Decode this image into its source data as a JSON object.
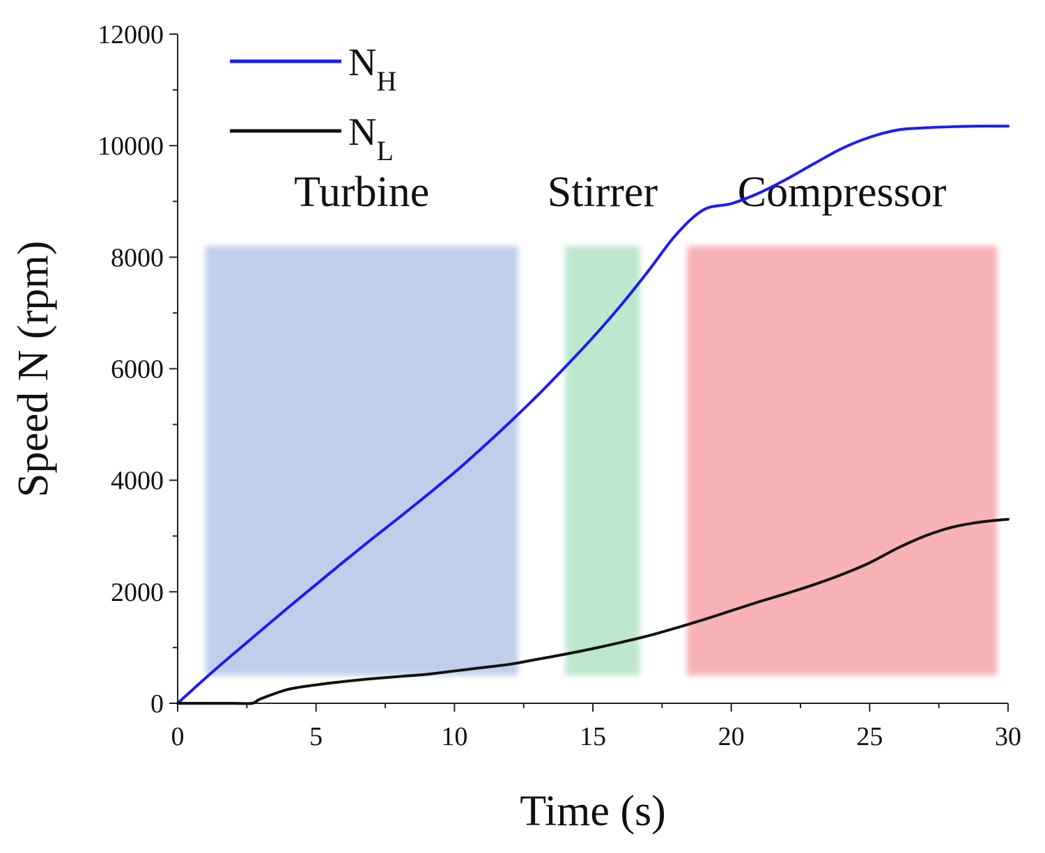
{
  "chart_data": {
    "type": "line",
    "title": "",
    "xlabel": "Time (s)",
    "ylabel": "Speed N (rpm)",
    "xlim": [
      0,
      30
    ],
    "ylim": [
      0,
      12000
    ],
    "x_ticks": [
      "0",
      "5",
      "10",
      "15",
      "20",
      "25",
      "30"
    ],
    "y_ticks": [
      "0",
      "2000",
      "4000",
      "6000",
      "8000",
      "10000",
      "12000"
    ],
    "grid": false,
    "legend_position": "top-left",
    "series": [
      {
        "name": "N",
        "subscript": "H",
        "color": "#1a1aff",
        "points": [
          [
            0,
            0
          ],
          [
            1,
            450
          ],
          [
            2,
            880
          ],
          [
            3,
            1300
          ],
          [
            4,
            1720
          ],
          [
            5,
            2130
          ],
          [
            6,
            2540
          ],
          [
            7,
            2940
          ],
          [
            8,
            3330
          ],
          [
            9,
            3730
          ],
          [
            10,
            4140
          ],
          [
            11,
            4580
          ],
          [
            12,
            5040
          ],
          [
            13,
            5520
          ],
          [
            14,
            6030
          ],
          [
            15,
            6560
          ],
          [
            16,
            7130
          ],
          [
            17,
            7750
          ],
          [
            18,
            8400
          ],
          [
            19,
            8850
          ],
          [
            20,
            8960
          ],
          [
            21,
            9150
          ],
          [
            22,
            9400
          ],
          [
            23,
            9680
          ],
          [
            24,
            9950
          ],
          [
            25,
            10150
          ],
          [
            26,
            10280
          ],
          [
            27,
            10320
          ],
          [
            28,
            10340
          ],
          [
            29,
            10350
          ],
          [
            30,
            10350
          ]
        ]
      },
      {
        "name": "N",
        "subscript": "L",
        "color": "#111111",
        "points": [
          [
            0,
            0
          ],
          [
            1,
            0
          ],
          [
            2,
            0
          ],
          [
            2.7,
            0
          ],
          [
            3,
            80
          ],
          [
            4,
            250
          ],
          [
            5,
            330
          ],
          [
            6,
            390
          ],
          [
            7,
            440
          ],
          [
            8,
            480
          ],
          [
            9,
            520
          ],
          [
            10,
            580
          ],
          [
            11,
            640
          ],
          [
            12,
            700
          ],
          [
            13,
            790
          ],
          [
            14,
            880
          ],
          [
            15,
            980
          ],
          [
            16,
            1090
          ],
          [
            17,
            1210
          ],
          [
            18,
            1350
          ],
          [
            19,
            1500
          ],
          [
            20,
            1660
          ],
          [
            21,
            1820
          ],
          [
            22,
            1970
          ],
          [
            23,
            2130
          ],
          [
            24,
            2310
          ],
          [
            25,
            2520
          ],
          [
            26,
            2780
          ],
          [
            27,
            3000
          ],
          [
            28,
            3160
          ],
          [
            29,
            3250
          ],
          [
            30,
            3300
          ]
        ]
      }
    ],
    "regions": [
      {
        "label": "Turbine",
        "x_start": 1,
        "x_end": 12.3,
        "y_start": 500,
        "y_end": 8200,
        "color": "#aabfe3"
      },
      {
        "label": "Stirrer",
        "x_start": 14,
        "x_end": 16.7,
        "y_start": 500,
        "y_end": 8200,
        "color": "#a9e0bd"
      },
      {
        "label": "Compressor",
        "x_start": 18.4,
        "x_end": 29.6,
        "y_start": 500,
        "y_end": 8200,
        "color": "#f7999c"
      }
    ]
  }
}
